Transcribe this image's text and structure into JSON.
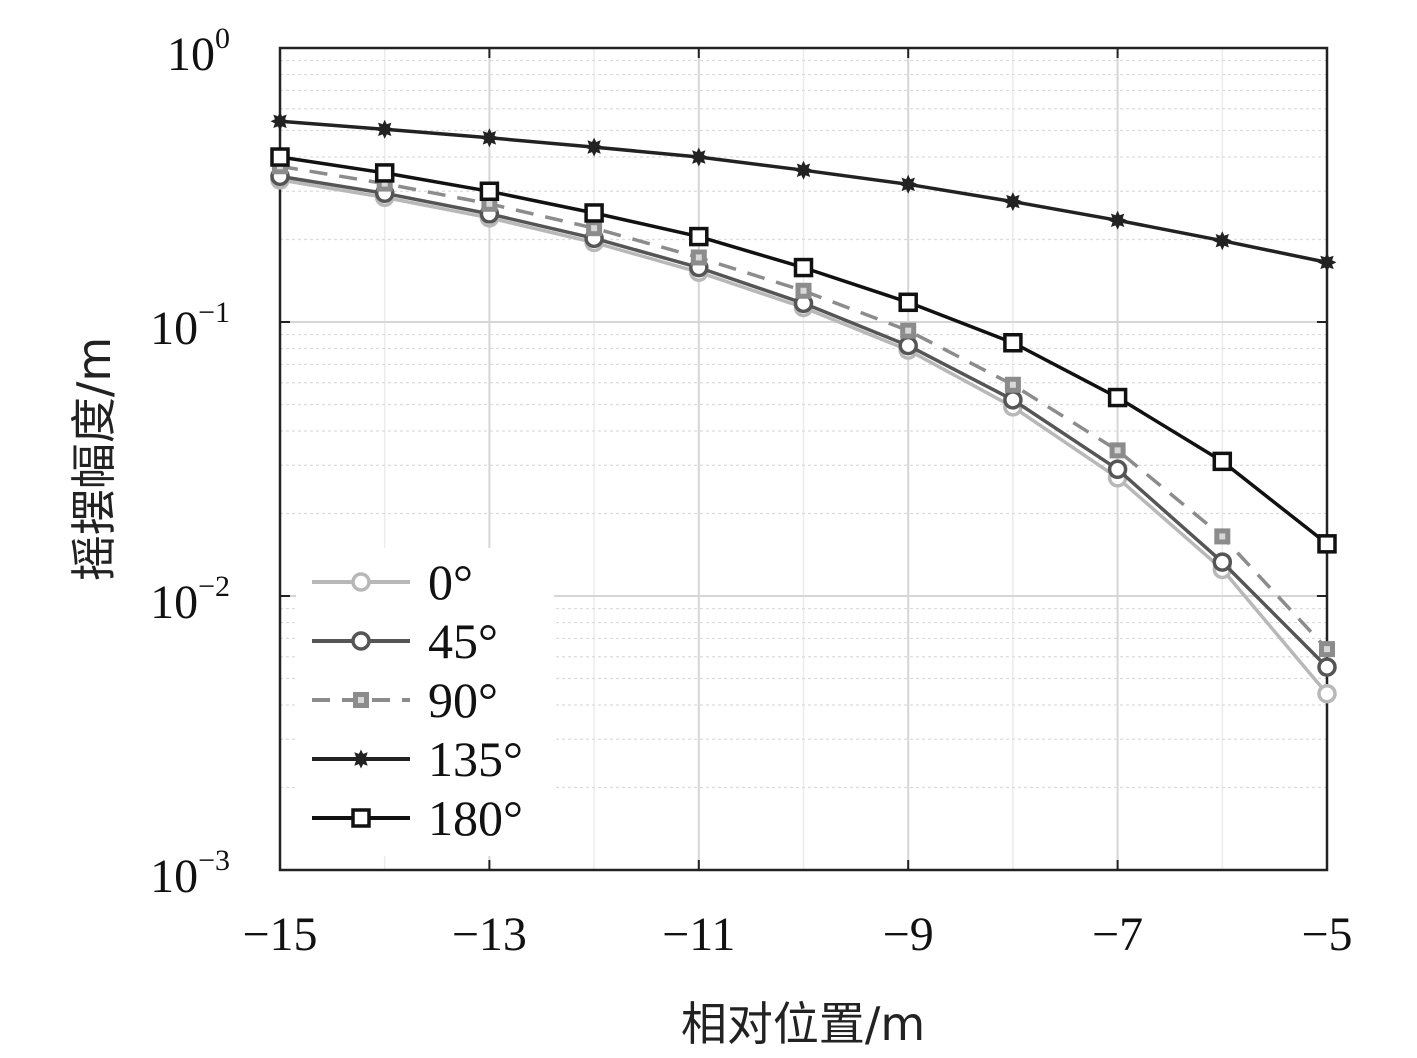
{
  "chart_data": {
    "type": "line",
    "title": "",
    "xlabel": "相对位置/m",
    "ylabel": "摇摆幅度/m",
    "xscale": "linear",
    "yscale": "log",
    "xlim": [
      -15,
      -5
    ],
    "ylim": [
      0.001,
      1
    ],
    "xticks": [
      -15,
      -13,
      -11,
      -9,
      -7,
      -5
    ],
    "xtick_labels": [
      "−15",
      "−13",
      "−11",
      "−9",
      "−7",
      "−5"
    ],
    "yticks": [
      0.001,
      0.01,
      0.1,
      1
    ],
    "ytick_labels": [
      {
        "base": "10",
        "exp": "−3"
      },
      {
        "base": "10",
        "exp": "−2"
      },
      {
        "base": "10",
        "exp": "−1"
      },
      {
        "base": "10",
        "exp": "0"
      }
    ],
    "grid": true,
    "legend_position": "bottom-left",
    "x": [
      -15,
      -14,
      -13,
      -12,
      -11,
      -10,
      -9,
      -8,
      -7,
      -6,
      -5
    ],
    "series": [
      {
        "name": "0°",
        "color": "#b8b8b8",
        "dash": "solid",
        "marker": "circle-open",
        "values": [
          0.33,
          0.285,
          0.24,
          0.195,
          0.152,
          0.113,
          0.079,
          0.049,
          0.027,
          0.0125,
          0.0044
        ]
      },
      {
        "name": "45°",
        "color": "#555555",
        "dash": "solid",
        "marker": "circle-open",
        "values": [
          0.34,
          0.295,
          0.248,
          0.202,
          0.158,
          0.117,
          0.082,
          0.052,
          0.029,
          0.0133,
          0.0055
        ]
      },
      {
        "name": "90°",
        "color": "#8c8c8c",
        "dash": "dashed",
        "marker": "square-filled",
        "values": [
          0.37,
          0.32,
          0.27,
          0.22,
          0.172,
          0.13,
          0.093,
          0.059,
          0.034,
          0.0165,
          0.0064
        ]
      },
      {
        "name": "135°",
        "color": "#222222",
        "dash": "solid",
        "marker": "star",
        "values": [
          0.54,
          0.505,
          0.47,
          0.435,
          0.4,
          0.358,
          0.318,
          0.275,
          0.235,
          0.198,
          0.165
        ]
      },
      {
        "name": "180°",
        "color": "#111111",
        "dash": "solid",
        "marker": "square-open",
        "values": [
          0.4,
          0.35,
          0.3,
          0.25,
          0.205,
          0.158,
          0.118,
          0.084,
          0.053,
          0.031,
          0.0155
        ]
      }
    ]
  }
}
